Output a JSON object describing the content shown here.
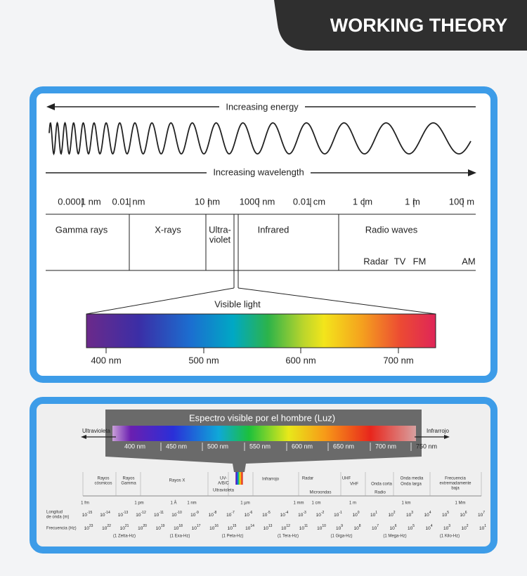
{
  "header": {
    "title": "WORKING THEORY"
  },
  "spectrum_diagram": {
    "energy_label": "Increasing energy",
    "wavelength_label": "Increasing wavelength",
    "scale_labels": [
      "0.0001 nm",
      "0.01 nm",
      "10 nm",
      "1000 nm",
      "0.01 cm",
      "1 cm",
      "1 m",
      "100 m"
    ],
    "regions": [
      "Gamma rays",
      "X-rays",
      "Infrared",
      "Radio waves"
    ],
    "ultraviolet_lines": [
      "Ultra-",
      "violet"
    ],
    "radio_bands": [
      "Radar",
      "TV",
      "FM",
      "AM"
    ],
    "visible_label": "Visible light",
    "visible_ticks": [
      "400 nm",
      "500 nm",
      "600 nm",
      "700 nm"
    ]
  },
  "spanish_chart": {
    "title": "Espectro visible por el hombre (Luz)",
    "left_label": "Ultravioleta",
    "right_label": "Infrarrojo",
    "nm_ticks": [
      "400 nm",
      "450 nm",
      "500 nm",
      "550 nm",
      "600 nm",
      "650 nm",
      "700 nm",
      "750 nm"
    ],
    "regions": [
      [
        "Rayos",
        "cósmicos"
      ],
      [
        "Rayos",
        "Gamma"
      ],
      [
        "Rayos X"
      ],
      [
        "UV-",
        "A/B/C"
      ],
      [
        "Ultravioleta"
      ],
      [
        "Infrarrojo"
      ],
      [
        "Radar"
      ],
      [
        "UHF"
      ],
      [
        "VHF"
      ],
      [
        "Microondas"
      ],
      [
        "Onda corta"
      ],
      [
        "Radio"
      ],
      [
        "Onda media"
      ],
      [
        "Onda larga"
      ],
      [
        "Frecuencia",
        "extremadamente",
        "baja"
      ]
    ],
    "length_units": [
      "1 fm",
      "1 pm",
      "1 Å",
      "1 nm",
      "1 µm",
      "1 mm",
      "1 cm",
      "1 m",
      "1 km",
      "1 Mm"
    ],
    "wavelength_label": [
      "Longitud",
      "de onda (m)"
    ],
    "exponent_base": "10",
    "wavelength_exponents": [
      "-15",
      "-14",
      "-13",
      "-12",
      "-11",
      "-10",
      "-9",
      "-8",
      "-7",
      "-6",
      "-5",
      "-4",
      "-3",
      "-2",
      "-1",
      "0",
      "1",
      "2",
      "3",
      "4",
      "5",
      "6",
      "7"
    ],
    "frequency_label": "Frecuencia (Hz)",
    "frequency_exponents": [
      "23",
      "22",
      "21",
      "20",
      "19",
      "18",
      "17",
      "16",
      "15",
      "14",
      "13",
      "12",
      "11",
      "10",
      "9",
      "8",
      "7",
      "6",
      "5",
      "4",
      "3",
      "2",
      "1"
    ],
    "frequency_units": [
      "(1 Zetta-Hz)",
      "(1 Exa-Hz)",
      "(1 Peta-Hz)",
      "(1 Tera-Hz)",
      "(1 Giga-Hz)",
      "(1 Mega-Hz)",
      "(1 Kilo-Hz)"
    ]
  }
}
